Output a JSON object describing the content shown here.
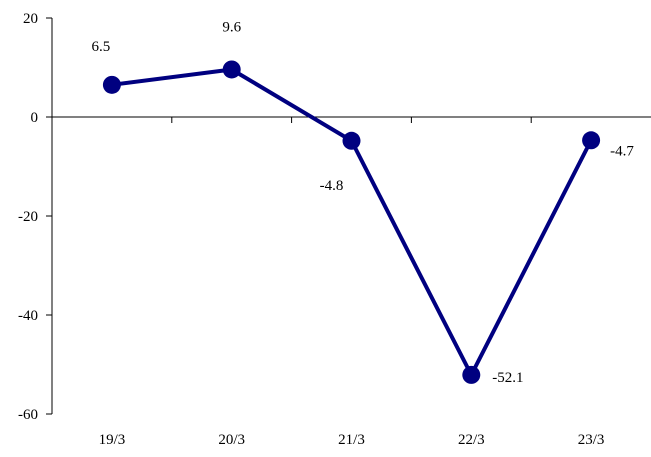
{
  "chart_data": {
    "type": "line",
    "categories": [
      "19/3",
      "20/3",
      "21/3",
      "22/3",
      "23/3"
    ],
    "series": [
      {
        "values": [
          6.5,
          9.6,
          -4.8,
          -52.1,
          -4.7
        ]
      }
    ],
    "data_labels": [
      "6.5",
      "9.6",
      "-4.8",
      "-52.1",
      "-4.7"
    ],
    "y_ticks": [
      20,
      0,
      -20,
      -40,
      -60
    ],
    "ylim": [
      -60,
      20
    ],
    "grid": false,
    "legend": "none",
    "colors": {
      "series": "#000080",
      "axis": "#000000"
    }
  }
}
